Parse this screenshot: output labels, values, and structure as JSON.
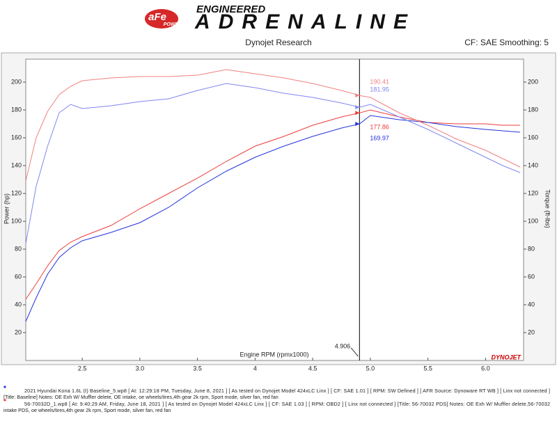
{
  "header": {
    "logo": "aFe",
    "logo_sub": "POWER",
    "tagline": "ENGINEERED",
    "brand": "ADRENALINE"
  },
  "chart_data": {
    "type": "line",
    "title": "Dynojet Research",
    "subtitle": "CF: SAE Smoothing: 5",
    "xlabel": "Engine RPM (rpmx1000)",
    "ylabel": "Power (hp)",
    "y2label": "Torque (ft-lbs)",
    "watermark": "DYNOJET",
    "cursor_index": 15,
    "x": [
      2.01,
      2.1,
      2.2,
      2.3,
      2.4,
      2.5,
      2.75,
      3.0,
      3.25,
      3.5,
      3.75,
      4.0,
      4.25,
      4.5,
      4.75,
      4.906,
      5.0,
      5.25,
      5.5,
      5.75,
      6.0,
      6.15,
      6.3
    ],
    "xlim": [
      2.01,
      6.33
    ],
    "xticks": [
      2.5,
      {
        "value": 3,
        "label": "3.0"
      },
      3.5,
      4,
      4.5,
      {
        "value": 5,
        "label": "5.0"
      },
      5.5,
      {
        "value": 6,
        "label": "6.0"
      }
    ],
    "ylim": [
      0,
      216.5
    ],
    "yticks": [
      20,
      40,
      60,
      80,
      100,
      120,
      140,
      160,
      180,
      200
    ],
    "y2lim": [
      0,
      216.5
    ],
    "y2ticks": [
      20,
      40,
      60,
      80,
      100,
      120,
      140,
      160,
      180,
      200
    ],
    "series": [
      {
        "color": "#ee3b3b",
        "values": [
          44,
          55,
          68,
          79,
          85,
          89,
          97,
          109,
          120,
          131,
          143,
          154,
          161,
          169,
          175,
          177.86,
          180,
          175,
          171,
          170,
          170,
          169,
          169
        ]
      },
      {
        "color": "#2233dd",
        "values": [
          28,
          45,
          62,
          74,
          81,
          86,
          92,
          99,
          110,
          124,
          136,
          146,
          154,
          161,
          167,
          169.97,
          176,
          173,
          171,
          168,
          166,
          165,
          164
        ]
      },
      {
        "color": "#f08080",
        "axis": "y2",
        "values": [
          129,
          160,
          179,
          191,
          197,
          201,
          203,
          204,
          204,
          205,
          209,
          206,
          203,
          199,
          194,
          190.41,
          189,
          178,
          169,
          159,
          151,
          145,
          139
        ]
      },
      {
        "color": "#7f86ee",
        "axis": "y2",
        "values": [
          84,
          125,
          154,
          178,
          184,
          181,
          183,
          186,
          188,
          194,
          199,
          196,
          192,
          189,
          185,
          181.95,
          184,
          175,
          166,
          156,
          146,
          140,
          135
        ]
      }
    ],
    "legend": [
      {
        "color": "#2233dd",
        "lines": [
          "2021 Hyundai Kona 1.6L (t) Baseline_5.wp8 [ At: 12:29:18 PM, Tuesday, June 8, 2021 ] [ As tested on Dynojet Model 424xLC Linx ] [ CF: SAE 1.01 ] [ RPM: SW Defined ] [ AFR Source: Dynoware RT WB ] [ Linx not connected ]",
          "[Title: Baseline]  Notes: OE Exh W/ Muffler delete, OE intake, oe wheels/tires,4th gear 2k rpm, Sport mode, silver fan, red fan"
        ]
      },
      {
        "color": "#ee3b3b",
        "lines": [
          "56-70032D_1.wp8 [ At: 9:40:29 AM, Friday, June 18, 2021 ] [ As tested on Dynojet Model 424xLC Linx ] [ CF: SAE 1.03 ] [ RPM: OBD2 ] [ Linx not connected ] [Title: 56-70032 PDS]  Notes: OE Exh W/ Muffler delete,56-70032",
          "intake PDS, oe wheels/tires,4th gear 2k rpm, Sport mode, silver fan, red fan"
        ]
      }
    ]
  }
}
